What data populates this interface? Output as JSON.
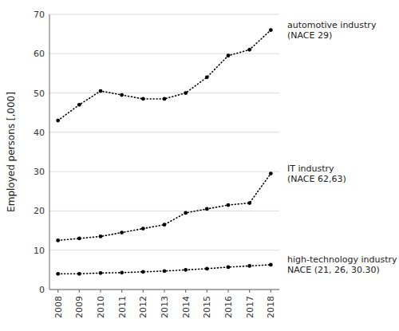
{
  "chart_data": {
    "type": "line",
    "y_label": "Employed persons [,000]",
    "x": [
      2008,
      2009,
      2010,
      2011,
      2012,
      2013,
      2014,
      2015,
      2016,
      2017,
      2018
    ],
    "series": [
      {
        "name": "automotive industry\n(NACE 29)",
        "color": "#000000",
        "marker": "dot",
        "line_style": "dotted",
        "values": [
          43,
          47,
          50.5,
          49.5,
          48.5,
          48.5,
          50,
          54,
          59.5,
          61,
          66
        ]
      },
      {
        "name": "IT industry\n(NACE 62,63)",
        "color": "#000000",
        "marker": "dot",
        "line_style": "dotted",
        "values": [
          12.5,
          13,
          13.5,
          14.5,
          15.5,
          16.5,
          19.5,
          20.5,
          21.5,
          22,
          29.5
        ]
      },
      {
        "name": "high-technology industry\nNACE (21, 26, 30.30)",
        "color": "#000000",
        "marker": "dot",
        "line_style": "dotted",
        "values": [
          4,
          4,
          4.2,
          4.3,
          4.5,
          4.7,
          5.0,
          5.3,
          5.7,
          6.0,
          6.3
        ]
      }
    ],
    "xlim": [
      2007.6,
      2018.4
    ],
    "xticks": [
      2008,
      2009,
      2010,
      2011,
      2012,
      2013,
      2014,
      2015,
      2016,
      2017,
      2018
    ],
    "ylim": [
      0,
      70
    ],
    "yticks": [
      0,
      10,
      20,
      30,
      40,
      50,
      60,
      70
    ],
    "grid": true
  }
}
